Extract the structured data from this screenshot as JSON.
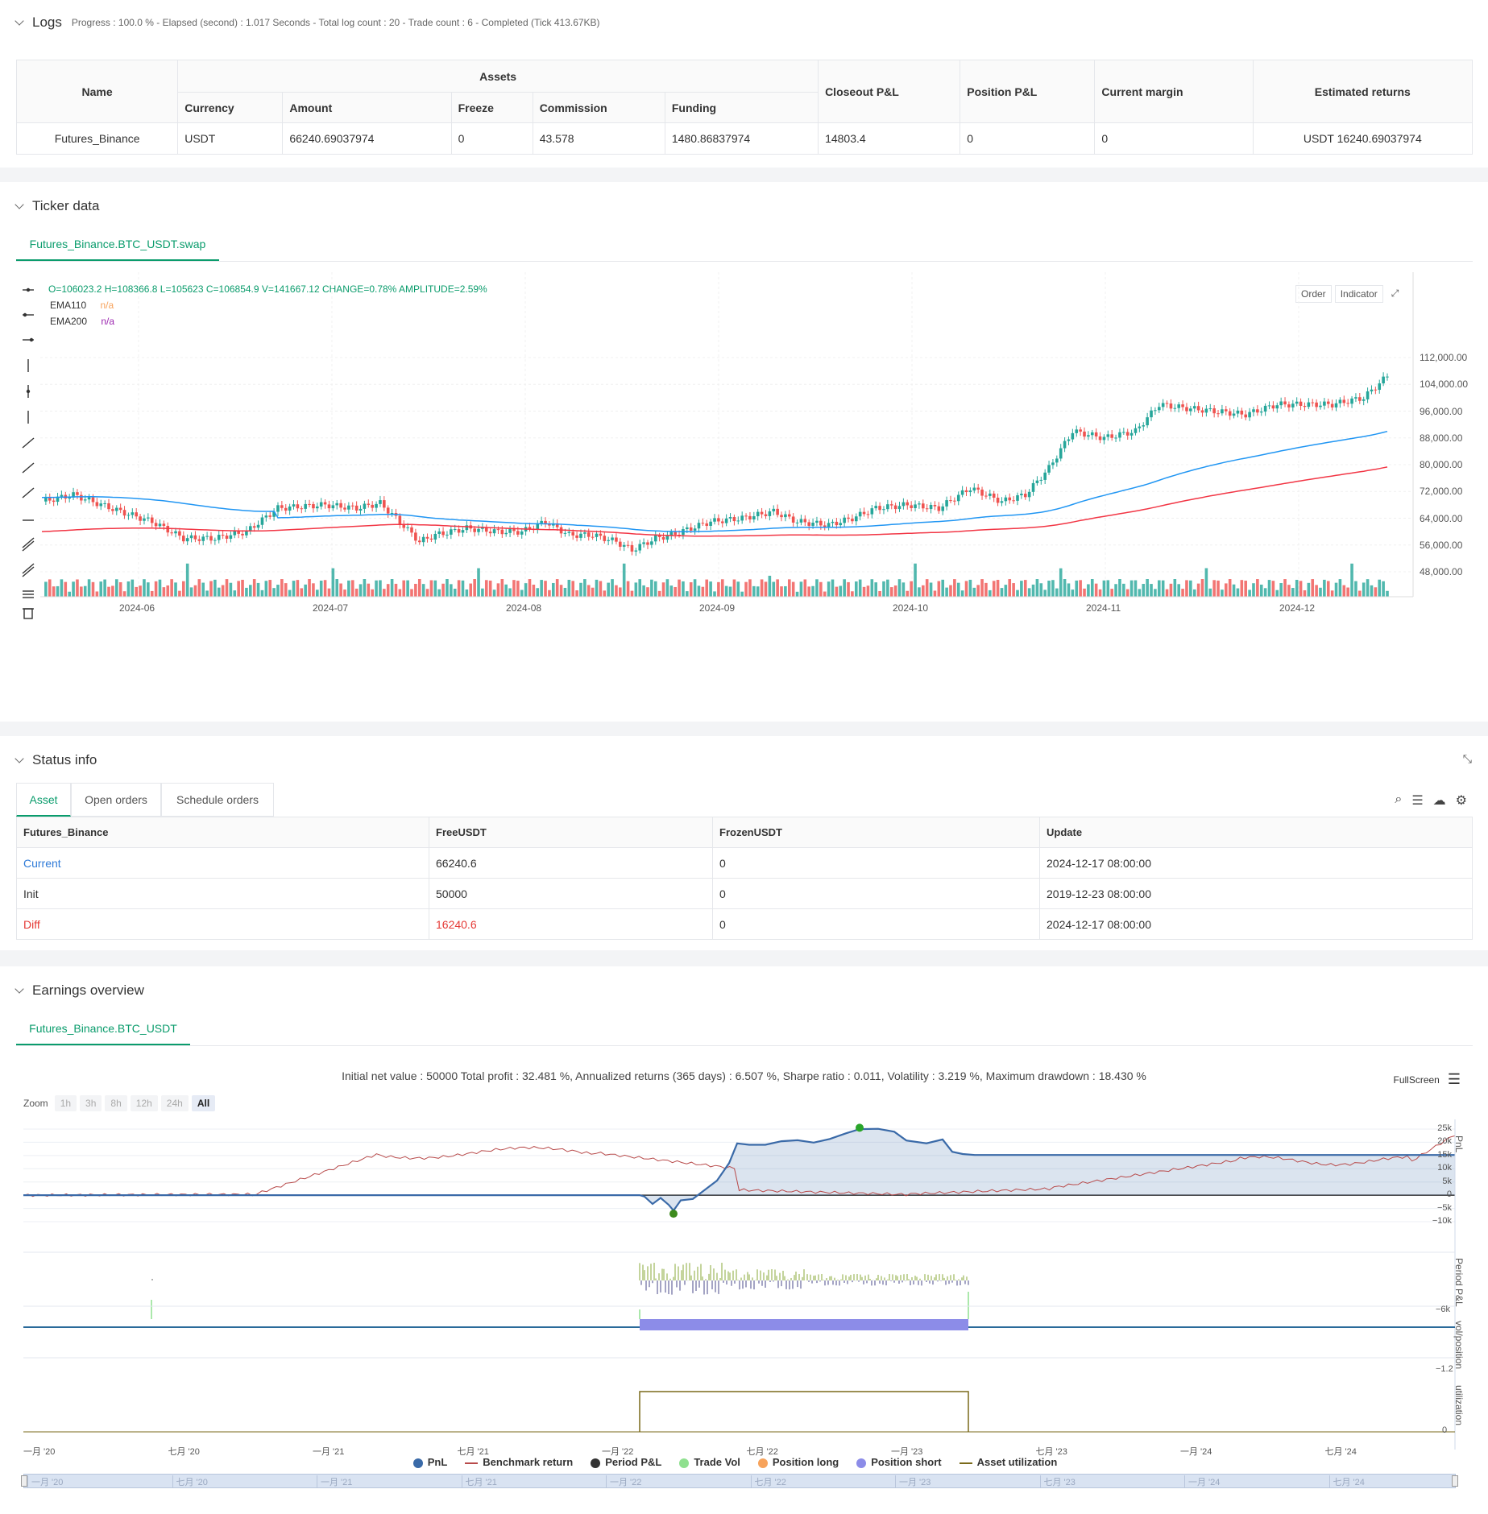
{
  "logs": {
    "title": "Logs",
    "summary": "Progress : 100.0 % - Elapsed (second) : 1.017  Seconds - Total log count : 20 - Trade count : 6 - Completed (Tick 413.67KB)",
    "table": {
      "name_header": "Name",
      "assets_header": "Assets",
      "sub_headers": [
        "Currency",
        "Amount",
        "Freeze",
        "Commission",
        "Funding"
      ],
      "closeout_header": "Closeout P&L",
      "position_header": "Position P&L",
      "margin_header": "Current margin",
      "returns_header": "Estimated returns",
      "row": {
        "name": "Futures_Binance",
        "currency": "USDT",
        "amount": "66240.69037974",
        "freeze": "0",
        "commission": "43.578",
        "funding": "1480.86837974",
        "closeout": "14803.4",
        "position": "0",
        "margin": "0",
        "returns": "USDT 16240.69037974"
      }
    }
  },
  "ticker": {
    "title": "Ticker data",
    "tab": "Futures_Binance.BTC_USDT.swap",
    "ohlc": "O=106023.2 H=108366.8 L=105623 C=106854.9 V=141667.12 CHANGE=0.78% AMPLITUDE=2.59%",
    "ema110_label": "EMA110",
    "ema110_val": "n/a",
    "ema200_label": "EMA200",
    "ema200_val": "n/a",
    "order_btn": "Order",
    "indicator_btn": "Indicator",
    "price_ticks": [
      "112,000.00",
      "104,000.00",
      "96,000.00",
      "88,000.00",
      "80,000.00",
      "72,000.00",
      "64,000.00",
      "56,000.00",
      "48,000.00"
    ],
    "date_ticks": [
      "2024-06",
      "2024-07",
      "2024-08",
      "2024-09",
      "2024-10",
      "2024-11",
      "2024-12"
    ],
    "colors": {
      "up": "#26a69a",
      "down": "#ef5350",
      "ema110": "#2196f3",
      "ema200": "#f23645"
    }
  },
  "status": {
    "title": "Status info",
    "tabs": [
      "Asset",
      "Open orders",
      "Schedule orders"
    ],
    "headers": [
      "Futures_Binance",
      "FreeUSDT",
      "FrozenUSDT",
      "Update"
    ],
    "rows": [
      [
        "Current",
        "66240.6",
        "0",
        "2024-12-17 08:00:00"
      ],
      [
        "Init",
        "50000",
        "0",
        "2019-12-23 08:00:00"
      ],
      [
        "Diff",
        "16240.6",
        "0",
        "2024-12-17 08:00:00"
      ]
    ]
  },
  "earnings": {
    "title": "Earnings overview",
    "tab": "Futures_Binance.BTC_USDT",
    "summary": "Initial net value : 50000  Total profit : 32.481 %, Annualized returns (365 days) : 6.507 %, Sharpe ratio : 0.011, Volatility : 3.219 %, Maximum drawdown : 18.430 %",
    "fullscreen": "FullScreen",
    "zoom_label": "Zoom",
    "zoom_options": [
      "1h",
      "3h",
      "8h",
      "12h",
      "24h",
      "All"
    ],
    "pnl_ticks": [
      "25k",
      "20k",
      "15k",
      "10k",
      "5k",
      "0",
      "−5k",
      "−10k"
    ],
    "pnl_axis": "PnL",
    "period_axis": "Period P&L",
    "period_tick": "−6k",
    "vol_axis": "vol/position",
    "vol_tick": "−1.2",
    "util_axis": "utilization",
    "util_tick": "0",
    "x_ticks": [
      "一月 '20",
      "七月 '20",
      "一月 '21",
      "七月 '21",
      "一月 '22",
      "七月 '22",
      "一月 '23",
      "七月 '23",
      "一月 '24",
      "七月 '24"
    ],
    "legend": [
      {
        "label": "PnL",
        "color": "#3a6aa8",
        "kind": "dot"
      },
      {
        "label": "Benchmark return",
        "color": "#b84a4a",
        "kind": "line"
      },
      {
        "label": "Period P&L",
        "color": "#333333",
        "kind": "dot"
      },
      {
        "label": "Trade Vol",
        "color": "#8fe08f",
        "kind": "dot"
      },
      {
        "label": "Position long",
        "color": "#f7a35c",
        "kind": "dot"
      },
      {
        "label": "Position short",
        "color": "#8c8ce8",
        "kind": "dot"
      },
      {
        "label": "Asset utilization",
        "color": "#7a6a1a",
        "kind": "line"
      }
    ]
  }
}
